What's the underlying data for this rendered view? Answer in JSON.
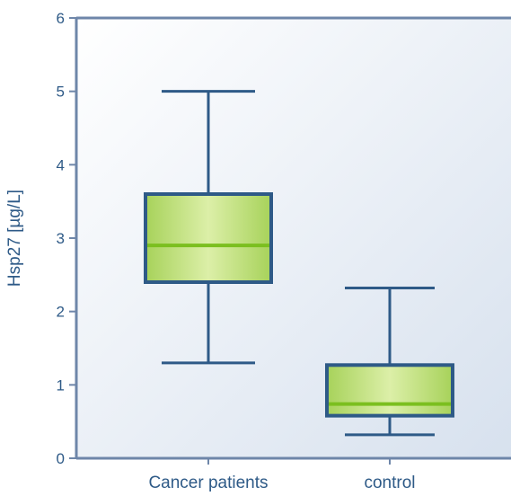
{
  "chart_data": {
    "type": "box",
    "ylabel": "Hsp27 [µg/L]",
    "ylim": [
      0,
      6
    ],
    "y_ticks": [
      "0",
      "1",
      "2",
      "3",
      "4",
      "5",
      "6"
    ],
    "categories": [
      "Cancer patients",
      "control"
    ],
    "boxes": [
      {
        "category": "Cancer patients",
        "whisker_low": 1.3,
        "q1": 2.4,
        "median": 2.9,
        "q3": 3.6,
        "whisker_high": 5.0
      },
      {
        "category": "control",
        "whisker_low": 0.32,
        "q1": 0.58,
        "median": 0.74,
        "q3": 1.27,
        "whisker_high": 2.32
      }
    ],
    "grid": false,
    "colors": {
      "axis": "#6e86a9",
      "box_stroke": "#2e5a87",
      "box_fill_light": "#dcefa8",
      "box_fill_dark": "#a7d25a",
      "median": "#7bbf1f",
      "plot_bg_light": "#ffffff",
      "plot_bg_dark": "#d7e1ee",
      "text": "#2e5a87"
    }
  }
}
